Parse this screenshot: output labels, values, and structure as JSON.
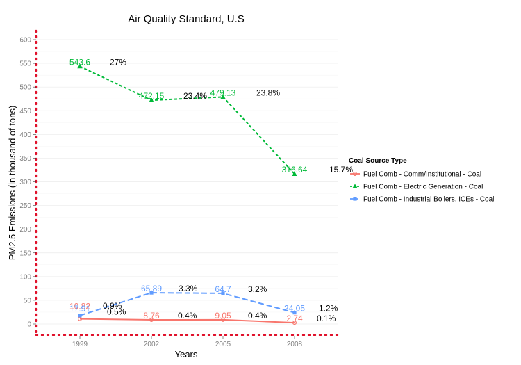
{
  "chart_data": {
    "type": "line",
    "title": "Air Quality Standard, U.S",
    "xlabel": "Years",
    "ylabel": "PM2.5 Emissions (in thousand of tons)",
    "categories": [
      "1999",
      "2002",
      "2005",
      "2008"
    ],
    "ylim": [
      -25,
      625
    ],
    "yticks": [
      0,
      50,
      100,
      150,
      200,
      250,
      300,
      350,
      400,
      450,
      500,
      550,
      600
    ],
    "grid": true,
    "legend": {
      "title": "Coal Source Type",
      "placement": "right"
    },
    "series": [
      {
        "name": "Fuel Comb - Comm/Institutional - Coal",
        "color": "#f8766d",
        "line_style": "solid",
        "values": [
          10.82,
          8.76,
          9.05,
          2.74
        ],
        "value_labels": [
          "10.82",
          "8.76",
          "9.05",
          "2.74"
        ],
        "pct_labels": [
          "0.5%",
          "0.4%",
          "0.4%",
          "0.1%"
        ]
      },
      {
        "name": "Fuel Comb - Electric Generation - Coal",
        "color": "#00ba38",
        "line_style": "dashed",
        "values": [
          543.6,
          472.15,
          479.13,
          316.64
        ],
        "value_labels": [
          "543.6",
          "472.15",
          "479.13",
          "316.64"
        ],
        "pct_labels": [
          "27%",
          "23.4%",
          "23.8%",
          "15.7%"
        ]
      },
      {
        "name": "Fuel Comb - Industrial Boilers, ICEs - Coal",
        "color": "#619cff",
        "line_style": "longdash",
        "values": [
          17.91,
          65.89,
          64.7,
          24.05
        ],
        "value_labels": [
          "17.91",
          "65.89",
          "64.7",
          "24.05"
        ],
        "pct_labels": [
          "0.9%",
          "3.3%",
          "3.2%",
          "1.2%"
        ]
      }
    ],
    "reference_lines": {
      "color": "#e0102a",
      "style": "dotted"
    }
  }
}
